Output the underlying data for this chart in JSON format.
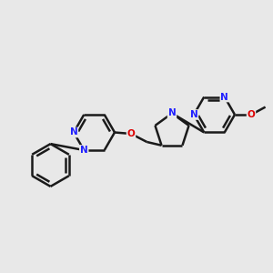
{
  "background_color": "#e8e8e8",
  "bond_color": "#1a1a1a",
  "N_color": "#2020ff",
  "O_color": "#dd0000",
  "bond_width": 1.8,
  "font_size_atom": 7.5,
  "fig_width": 3.0,
  "fig_height": 3.0,
  "dpi": 100,
  "xlim": [
    0,
    10
  ],
  "ylim": [
    0,
    10
  ]
}
